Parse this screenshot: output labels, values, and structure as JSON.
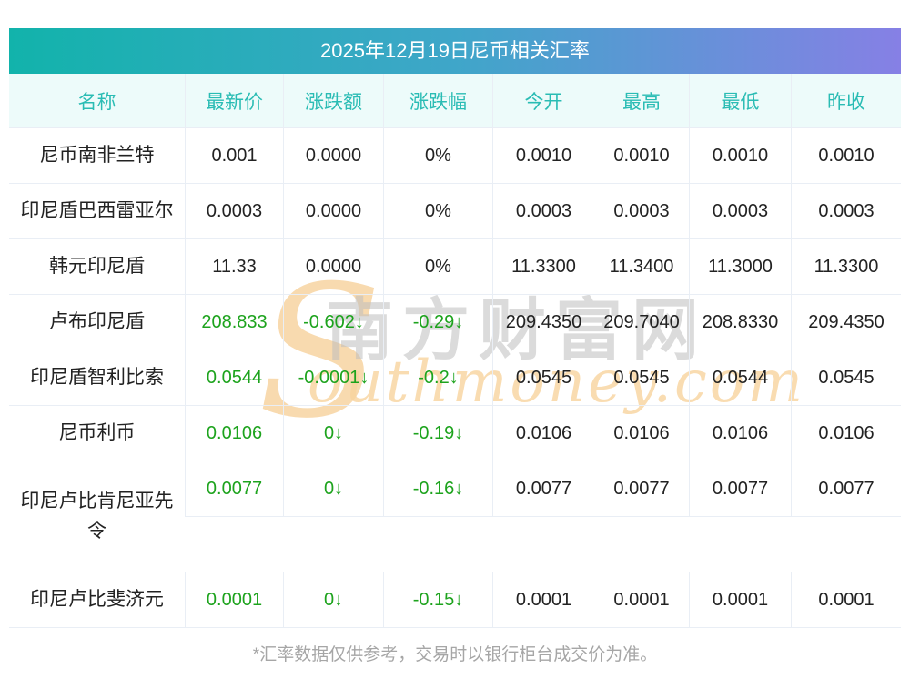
{
  "title": "2025年12月19日尼币相关汇率",
  "footnote": "*汇率数据仅供参考，交易时以银行柜台成交价为准。",
  "watermark": {
    "initial": "S",
    "cn": "南方财富网",
    "en": "outhmoney.com"
  },
  "colors": {
    "title_gradient_left": "#12b3ab",
    "title_gradient_right": "#8680e5",
    "header_bg": "#edfbfa",
    "header_text": "#2abcb4",
    "down_green": "#1da31d",
    "border": "#e9eef5",
    "text": "#222222",
    "footnote_text": "#a6a6a6"
  },
  "table": {
    "columns": [
      {
        "key": "name",
        "label": "名称"
      },
      {
        "key": "latest",
        "label": "最新价"
      },
      {
        "key": "change",
        "label": "涨跌额"
      },
      {
        "key": "pct",
        "label": "涨跌幅"
      },
      {
        "key": "open",
        "label": "今开"
      },
      {
        "key": "high",
        "label": "最高"
      },
      {
        "key": "low",
        "label": "最低"
      },
      {
        "key": "prev",
        "label": "昨收"
      }
    ],
    "rows": [
      {
        "name": "尼币南非兰特",
        "latest": "0.001",
        "change": "0.0000",
        "pct": "0%",
        "open": "0.0010",
        "high": "0.0010",
        "low": "0.0010",
        "prev": "0.0010",
        "trend": "flat",
        "tall": false
      },
      {
        "name": "印尼盾巴西雷亚尔",
        "latest": "0.0003",
        "change": "0.0000",
        "pct": "0%",
        "open": "0.0003",
        "high": "0.0003",
        "low": "0.0003",
        "prev": "0.0003",
        "trend": "flat",
        "tall": false
      },
      {
        "name": "韩元印尼盾",
        "latest": "11.33",
        "change": "0.0000",
        "pct": "0%",
        "open": "11.3300",
        "high": "11.3400",
        "low": "11.3000",
        "prev": "11.3300",
        "trend": "flat",
        "tall": false
      },
      {
        "name": "卢布印尼盾",
        "latest": "208.833",
        "change": "-0.602↓",
        "pct": "-0.29↓",
        "open": "209.4350",
        "high": "209.7040",
        "low": "208.8330",
        "prev": "209.4350",
        "trend": "down",
        "tall": false
      },
      {
        "name": "印尼盾智利比索",
        "latest": "0.0544",
        "change": "-0.0001↓",
        "pct": "-0.2↓",
        "open": "0.0545",
        "high": "0.0545",
        "low": "0.0544",
        "prev": "0.0545",
        "trend": "down",
        "tall": false
      },
      {
        "name": "尼币利币",
        "latest": "0.0106",
        "change": "0↓",
        "pct": "-0.19↓",
        "open": "0.0106",
        "high": "0.0106",
        "low": "0.0106",
        "prev": "0.0106",
        "trend": "down",
        "tall": false
      },
      {
        "name": "印尼卢比肯尼亚先令",
        "latest": "0.0077",
        "change": "0↓",
        "pct": "-0.16↓",
        "open": "0.0077",
        "high": "0.0077",
        "low": "0.0077",
        "prev": "0.0077",
        "trend": "down",
        "tall": true
      },
      {
        "name": "印尼卢比斐济元",
        "latest": "0.0001",
        "change": "0↓",
        "pct": "-0.15↓",
        "open": "0.0001",
        "high": "0.0001",
        "low": "0.0001",
        "prev": "0.0001",
        "trend": "down",
        "tall": false
      }
    ]
  }
}
